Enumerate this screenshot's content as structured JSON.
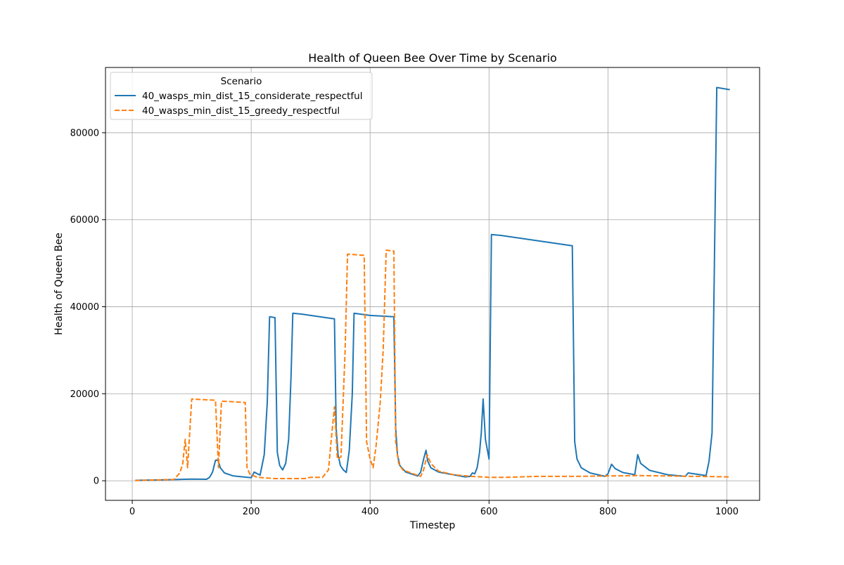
{
  "chart_data": {
    "type": "line",
    "title": "Health of Queen Bee Over Time by Scenario",
    "xlabel": "Timestep",
    "ylabel": "Health of Queen Bee",
    "xlim": [
      -45,
      1055
    ],
    "ylim": [
      -4500,
      95000
    ],
    "xticks": [
      0,
      200,
      400,
      600,
      800,
      1000
    ],
    "yticks": [
      0,
      20000,
      40000,
      60000,
      80000
    ],
    "grid": true,
    "legend": {
      "title": "Scenario",
      "placement": "top-left"
    },
    "series": [
      {
        "name": "40_wasps_min_dist_15_considerate_respectful",
        "color": "#1f77b4",
        "dash": "solid",
        "points": [
          [
            5,
            100
          ],
          [
            50,
            200
          ],
          [
            100,
            400
          ],
          [
            125,
            350
          ],
          [
            130,
            800
          ],
          [
            135,
            2000
          ],
          [
            140,
            4700
          ],
          [
            144,
            4800
          ],
          [
            148,
            3000
          ],
          [
            155,
            1800
          ],
          [
            170,
            1100
          ],
          [
            200,
            700
          ],
          [
            205,
            2000
          ],
          [
            215,
            1300
          ],
          [
            222,
            6000
          ],
          [
            227,
            18000
          ],
          [
            231,
            37700
          ],
          [
            240,
            37500
          ],
          [
            244,
            6500
          ],
          [
            248,
            3500
          ],
          [
            253,
            2500
          ],
          [
            258,
            4000
          ],
          [
            263,
            9500
          ],
          [
            267,
            24000
          ],
          [
            270,
            38500
          ],
          [
            285,
            38300
          ],
          [
            340,
            37200
          ],
          [
            343,
            12000
          ],
          [
            346,
            6000
          ],
          [
            350,
            3500
          ],
          [
            355,
            2500
          ],
          [
            360,
            1900
          ],
          [
            365,
            7000
          ],
          [
            370,
            20000
          ],
          [
            373,
            38500
          ],
          [
            400,
            38000
          ],
          [
            440,
            37700
          ],
          [
            443,
            12000
          ],
          [
            446,
            6000
          ],
          [
            450,
            3500
          ],
          [
            460,
            2000
          ],
          [
            480,
            1100
          ],
          [
            485,
            2000
          ],
          [
            490,
            5000
          ],
          [
            494,
            7000
          ],
          [
            497,
            4500
          ],
          [
            502,
            3000
          ],
          [
            515,
            2000
          ],
          [
            560,
            900
          ],
          [
            568,
            1000
          ],
          [
            572,
            1800
          ],
          [
            576,
            1600
          ],
          [
            580,
            3000
          ],
          [
            584,
            6500
          ],
          [
            587,
            11000
          ],
          [
            590,
            18800
          ],
          [
            594,
            9500
          ],
          [
            600,
            5000
          ],
          [
            604,
            56600
          ],
          [
            620,
            56400
          ],
          [
            680,
            55200
          ],
          [
            740,
            54000
          ],
          [
            744,
            9000
          ],
          [
            748,
            5000
          ],
          [
            755,
            3000
          ],
          [
            770,
            1800
          ],
          [
            795,
            1000
          ],
          [
            800,
            1600
          ],
          [
            806,
            3800
          ],
          [
            812,
            2800
          ],
          [
            825,
            1900
          ],
          [
            845,
            1400
          ],
          [
            850,
            6000
          ],
          [
            855,
            4000
          ],
          [
            870,
            2400
          ],
          [
            900,
            1400
          ],
          [
            930,
            1000
          ],
          [
            935,
            1800
          ],
          [
            965,
            1200
          ],
          [
            970,
            4500
          ],
          [
            975,
            11000
          ],
          [
            978,
            40000
          ],
          [
            983,
            90400
          ],
          [
            1005,
            89900
          ]
        ]
      },
      {
        "name": "40_wasps_min_dist_15_greedy_respectful",
        "color": "#ff7f0e",
        "dash": "dashed",
        "points": [
          [
            5,
            50
          ],
          [
            70,
            300
          ],
          [
            80,
            1800
          ],
          [
            85,
            4000
          ],
          [
            89,
            9500
          ],
          [
            93,
            3000
          ],
          [
            100,
            18800
          ],
          [
            140,
            18500
          ],
          [
            145,
            3000
          ],
          [
            150,
            18300
          ],
          [
            190,
            18000
          ],
          [
            193,
            3000
          ],
          [
            198,
            1500
          ],
          [
            210,
            800
          ],
          [
            240,
            500
          ],
          [
            290,
            500
          ],
          [
            300,
            800
          ],
          [
            320,
            800
          ],
          [
            330,
            2500
          ],
          [
            335,
            10000
          ],
          [
            340,
            17000
          ],
          [
            345,
            5000
          ],
          [
            351,
            5500
          ],
          [
            358,
            30000
          ],
          [
            362,
            52100
          ],
          [
            390,
            51800
          ],
          [
            394,
            9000
          ],
          [
            400,
            5000
          ],
          [
            405,
            3000
          ],
          [
            410,
            8000
          ],
          [
            417,
            18000
          ],
          [
            422,
            30000
          ],
          [
            427,
            53000
          ],
          [
            440,
            52800
          ],
          [
            443,
            9000
          ],
          [
            448,
            4000
          ],
          [
            455,
            2500
          ],
          [
            475,
            1500
          ],
          [
            485,
            1000
          ],
          [
            490,
            2500
          ],
          [
            496,
            6000
          ],
          [
            502,
            4000
          ],
          [
            515,
            2200
          ],
          [
            540,
            1400
          ],
          [
            570,
            1000
          ],
          [
            600,
            800
          ],
          [
            630,
            800
          ],
          [
            680,
            1000
          ],
          [
            740,
            1000
          ],
          [
            800,
            1100
          ],
          [
            850,
            1200
          ],
          [
            900,
            1100
          ],
          [
            950,
            1000
          ],
          [
            1005,
            900
          ]
        ]
      }
    ]
  }
}
